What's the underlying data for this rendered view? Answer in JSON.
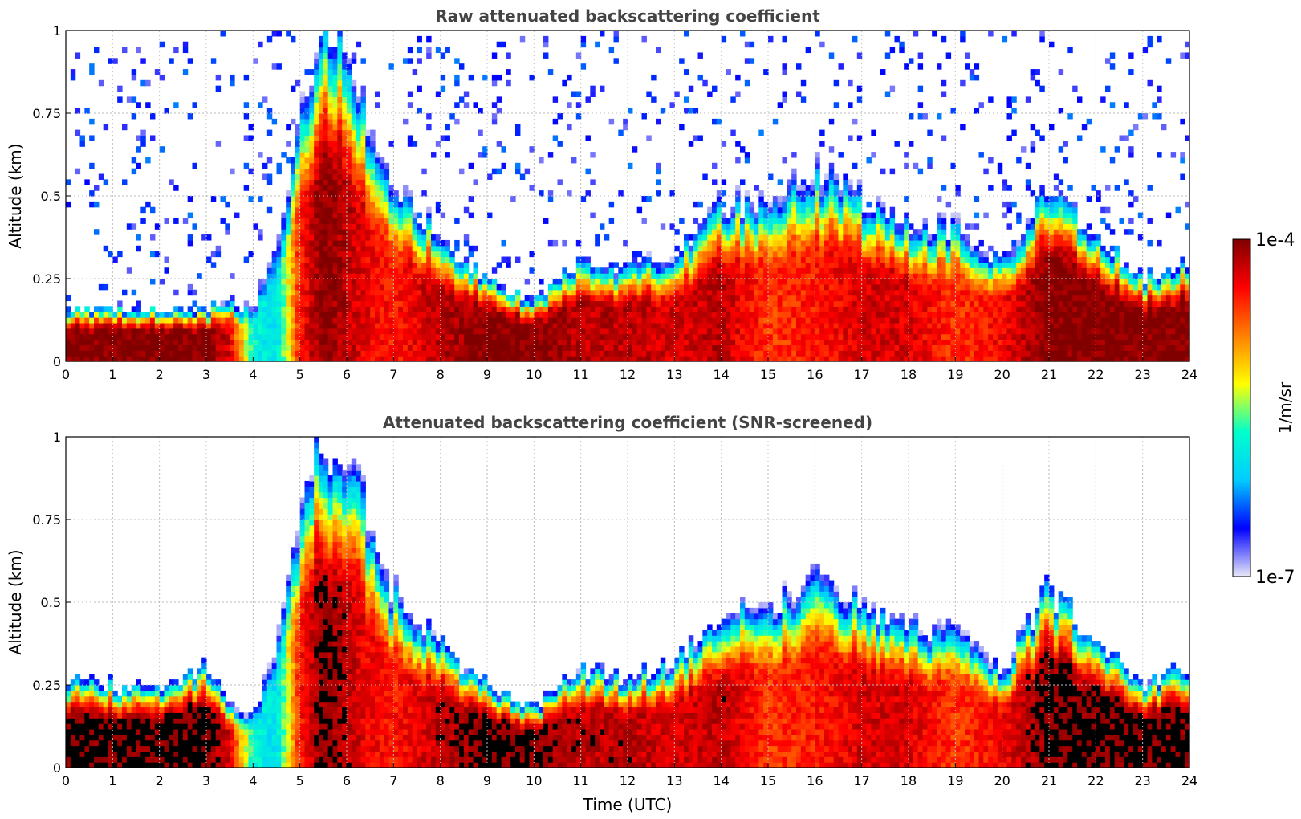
{
  "colors": {
    "colormap": [
      "#e8e8f8",
      "#0000ff",
      "#00ccff",
      "#00ffcc",
      "#ffff00",
      "#ff8000",
      "#ff0000",
      "#800000"
    ],
    "screened_saturation": "#000000",
    "grid": "#bbbbbb"
  },
  "colorbar": {
    "label": "1/m/sr",
    "max_label": "1e-4",
    "min_label": "1e-7",
    "scale": "log",
    "range": [
      1e-07,
      0.0001
    ]
  },
  "chart_data": [
    {
      "type": "heatmap",
      "id": "raw",
      "title": "Raw attenuated backscattering coefficient",
      "xlabel": "",
      "ylabel": "Altitude (km)",
      "xlim": [
        0,
        24
      ],
      "ylim": [
        0,
        1
      ],
      "x_ticks": [
        0,
        1,
        2,
        3,
        4,
        5,
        6,
        7,
        8,
        9,
        10,
        11,
        12,
        13,
        14,
        15,
        16,
        17,
        18,
        19,
        20,
        21,
        22,
        23,
        24
      ],
      "x_tick_labels": [
        "0",
        "1",
        "2",
        "3",
        "4",
        "5",
        "6",
        "7",
        "8",
        "9",
        "10",
        "11",
        "12",
        "13",
        "14",
        "15",
        "16",
        "17",
        "18",
        "19",
        "20",
        "21",
        "22",
        "23",
        "24"
      ],
      "y_ticks": [
        0,
        0.25,
        0.5,
        0.75,
        1
      ],
      "y_tick_labels": [
        "0",
        "0.25",
        "0.5",
        "0.75",
        "1"
      ],
      "grid": true,
      "time_utc": [
        0,
        1,
        2,
        3,
        3.5,
        4,
        4.5,
        5,
        5.5,
        6,
        6.5,
        7,
        8,
        9,
        10,
        11,
        12,
        13,
        14,
        15,
        16,
        17,
        18,
        19,
        20,
        21,
        22,
        23,
        24
      ],
      "layer_top_km": [
        0.16,
        0.16,
        0.16,
        0.16,
        0.18,
        0.2,
        0.45,
        0.75,
        1.0,
        0.95,
        0.75,
        0.55,
        0.38,
        0.25,
        0.18,
        0.3,
        0.28,
        0.32,
        0.48,
        0.5,
        0.6,
        0.5,
        0.42,
        0.42,
        0.3,
        0.55,
        0.38,
        0.25,
        0.3
      ],
      "layer_peak_log10": [
        -4.0,
        -4.0,
        -4.0,
        -4.0,
        -4.3,
        -5.8,
        -6.0,
        -4.5,
        -4.0,
        -4.2,
        -4.4,
        -4.5,
        -4.2,
        -4.0,
        -4.0,
        -4.2,
        -4.2,
        -4.3,
        -4.2,
        -4.6,
        -4.5,
        -4.3,
        -4.3,
        -4.6,
        -4.4,
        -4.0,
        -4.0,
        -4.0,
        -4.0
      ]
    },
    {
      "type": "heatmap",
      "id": "screened",
      "title": "Attenuated backscattering coefficient (SNR-screened)",
      "xlabel": "Time (UTC)",
      "ylabel": "Altitude (km)",
      "xlim": [
        0,
        24
      ],
      "ylim": [
        0,
        1
      ],
      "x_ticks": [
        0,
        1,
        2,
        3,
        4,
        5,
        6,
        7,
        8,
        9,
        10,
        11,
        12,
        13,
        14,
        15,
        16,
        17,
        18,
        19,
        20,
        21,
        22,
        23,
        24
      ],
      "x_tick_labels": [
        "0",
        "1",
        "2",
        "3",
        "4",
        "5",
        "6",
        "7",
        "8",
        "9",
        "10",
        "11",
        "12",
        "13",
        "14",
        "15",
        "16",
        "17",
        "18",
        "19",
        "20",
        "21",
        "22",
        "23",
        "24"
      ],
      "y_ticks": [
        0,
        0.25,
        0.5,
        0.75,
        1
      ],
      "y_tick_labels": [
        "0",
        "0.25",
        "0.5",
        "0.75",
        "1"
      ],
      "grid": true,
      "time_utc": [
        0,
        1,
        2,
        3,
        3.5,
        4,
        4.5,
        5,
        5.5,
        6,
        6.5,
        7,
        8,
        9,
        10,
        11,
        12,
        13,
        14,
        15,
        16,
        17,
        18,
        19,
        20,
        21,
        22,
        23,
        24
      ],
      "layer_top_km": [
        0.27,
        0.25,
        0.24,
        0.3,
        0.2,
        0.2,
        0.45,
        0.75,
        1.0,
        0.95,
        0.75,
        0.55,
        0.38,
        0.25,
        0.18,
        0.3,
        0.28,
        0.32,
        0.48,
        0.5,
        0.6,
        0.5,
        0.42,
        0.42,
        0.3,
        0.55,
        0.38,
        0.25,
        0.3
      ],
      "layer_peak_log10": [
        -4.0,
        -4.0,
        -4.0,
        -4.0,
        -4.3,
        -5.8,
        -6.0,
        -4.5,
        -4.0,
        -4.2,
        -4.4,
        -4.5,
        -4.2,
        -4.0,
        -4.0,
        -4.2,
        -4.2,
        -4.3,
        -4.2,
        -4.6,
        -4.5,
        -4.3,
        -4.3,
        -4.6,
        -4.4,
        -4.0,
        -4.0,
        -4.0,
        -4.0
      ]
    }
  ]
}
